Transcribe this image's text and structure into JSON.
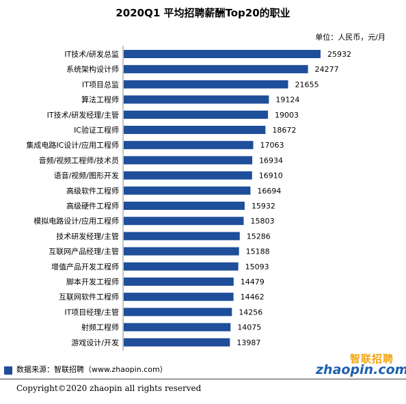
{
  "title": "2020Q1 平均招聘薪酬Top20的职业",
  "unit_label": "单位：人民币，元/月",
  "source": "数据来源：智联招聘（www.zhaopin.com）",
  "copyright": "Copyright©2020 zhaopin all rights reserved",
  "logo": {
    "cn": "智联招聘",
    "en": "zhaopin.com"
  },
  "colors": {
    "bar": "#1f4e9a"
  },
  "chart_data": {
    "type": "bar",
    "orientation": "horizontal",
    "title": "2020Q1 平均招聘薪酬Top20的职业",
    "categories": [
      "IT技术/研发总监",
      "系统架构设计师",
      "IT项目总监",
      "算法工程师",
      "IT技术/研发经理/主管",
      "IC验证工程师",
      "集成电路IC设计/应用工程师",
      "音频/视频工程师/技术员",
      "语音/视频/图形开发",
      "高级软件工程师",
      "高级硬件工程师",
      "模拟电路设计/应用工程师",
      "技术研发经理/主管",
      "互联网产品经理/主管",
      "增值产品开发工程师",
      "脚本开发工程师",
      "互联网软件工程师",
      "IT项目经理/主管",
      "射频工程师",
      "游戏设计/开发"
    ],
    "values": [
      25932,
      24277,
      21655,
      19124,
      19003,
      18672,
      17063,
      16934,
      16910,
      16694,
      15932,
      15803,
      15286,
      15188,
      15093,
      14479,
      14462,
      14256,
      14075,
      13987
    ],
    "xlabel": "",
    "ylabel": "",
    "xlim": [
      0,
      27000
    ],
    "grid": false,
    "legend": "none"
  }
}
